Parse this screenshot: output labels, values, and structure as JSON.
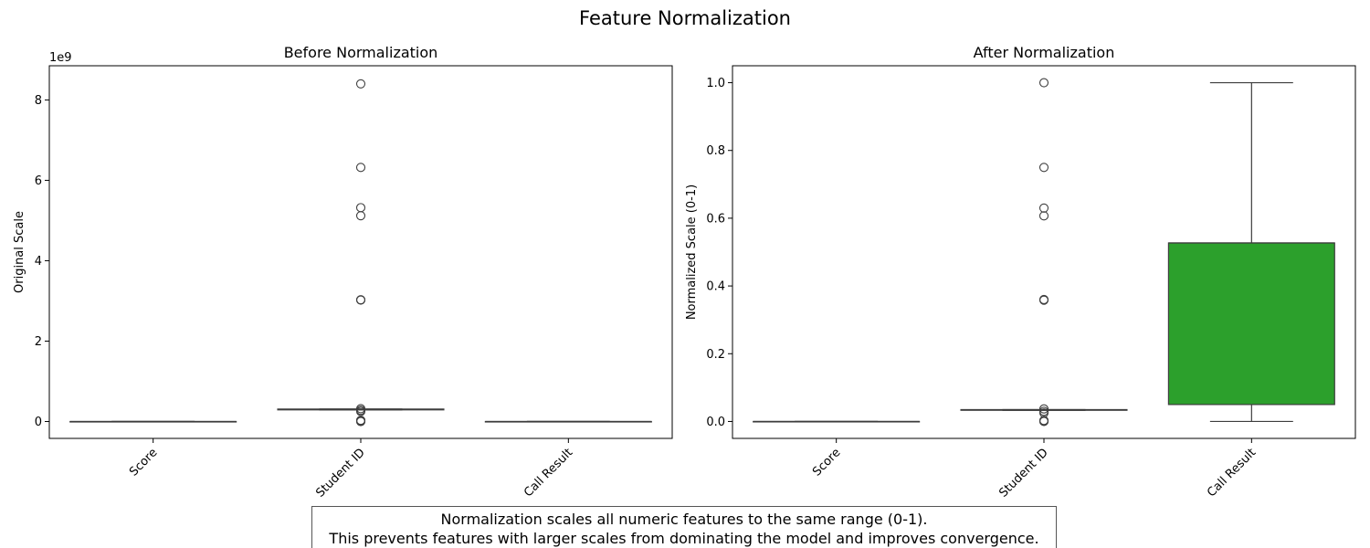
{
  "figure": {
    "title": "Feature Normalization",
    "note_lines": [
      "Normalization scales all numeric features to the same range (0-1).",
      "This prevents features with larger scales from dominating the model and improves convergence."
    ]
  },
  "chart_data": [
    {
      "type": "box",
      "title": "Before Normalization",
      "xlabel": "",
      "ylabel": "Original Scale",
      "offset_label": "1e9",
      "categories": [
        "Score",
        "Student ID",
        "Call Result"
      ],
      "ylim": [
        -0.42,
        8.85
      ],
      "yticks": [
        0,
        2,
        4,
        6,
        8
      ],
      "colors": [
        "#1f77b4",
        "#ff7f0e",
        "#2ca02c"
      ],
      "boxes": [
        {
          "q1": 0,
          "median": 0,
          "q3": 0,
          "whisker_low": 0,
          "whisker_high": 0,
          "outliers": []
        },
        {
          "q1": 0.29,
          "median": 0.3,
          "q3": 0.31,
          "whisker_low": 0.29,
          "whisker_high": 0.31,
          "outliers": [
            8.4,
            6.32,
            5.32,
            5.12,
            3.02,
            3.03,
            0.32,
            0.28,
            0.25,
            0.02,
            0.01,
            0.0,
            0.03
          ]
        },
        {
          "q1": 0,
          "median": 0,
          "q3": 0,
          "whisker_low": 0,
          "whisker_high": 0,
          "outliers": []
        }
      ]
    },
    {
      "type": "box",
      "title": "After Normalization",
      "xlabel": "",
      "ylabel": "Normalized Scale (0-1)",
      "categories": [
        "Score",
        "Student ID",
        "Call Result"
      ],
      "ylim": [
        -0.05,
        1.05
      ],
      "yticks": [
        0.0,
        0.2,
        0.4,
        0.6,
        0.8,
        1.0
      ],
      "colors": [
        "#1f77b4",
        "#ff7f0e",
        "#2ca02c"
      ],
      "boxes": [
        {
          "q1": 0,
          "median": 0,
          "q3": 0,
          "whisker_low": 0,
          "whisker_high": 0,
          "outliers": []
        },
        {
          "q1": 0.033,
          "median": 0.034,
          "q3": 0.035,
          "whisker_low": 0.033,
          "whisker_high": 0.035,
          "outliers": [
            1.0,
            0.75,
            0.63,
            0.607,
            0.36,
            0.358,
            0.037,
            0.03,
            0.025,
            0.003,
            0.001,
            0.0
          ]
        },
        {
          "q1": 0.05,
          "median": 0.527,
          "q3": 0.527,
          "whisker_low": 0.0,
          "whisker_high": 1.0,
          "outliers": []
        }
      ]
    }
  ]
}
